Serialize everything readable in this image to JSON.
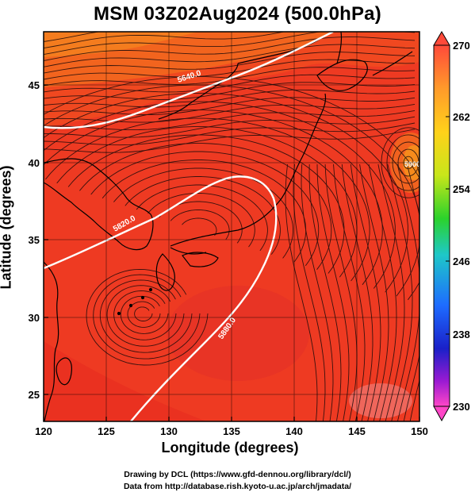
{
  "title": "MSM 03Z02Aug2024 (500.0hPa)",
  "map": {
    "xaxis": {
      "label": "Longitude (degrees)",
      "range": [
        120,
        150
      ],
      "ticks": [
        "120",
        "125",
        "130",
        "135",
        "140",
        "145",
        "150"
      ]
    },
    "yaxis": {
      "label": "Latitude  (degrees)",
      "range": [
        22.5,
        47.6
      ],
      "ticks": [
        "25",
        "30",
        "35",
        "40",
        "45"
      ]
    },
    "grid": true,
    "field_color": "#ee3a22",
    "contour_labels": [
      "5640.0",
      "5820.0",
      "5880.0",
      "5900.0"
    ]
  },
  "colorbar": {
    "ticks": [
      "270",
      "262",
      "254",
      "246",
      "238",
      "230"
    ],
    "colors": [
      "#ff4a3a",
      "#ff9a2a",
      "#ffd21a",
      "#c8e61a",
      "#2bd22b",
      "#1ec8c8",
      "#1e6cff",
      "#1a20c8",
      "#9a1ad2",
      "#ff46c8"
    ]
  },
  "footer": {
    "line1": "Drawing by DCL (https://www.gfd-dennou.org/library/dcl/)",
    "line2": "Data from http://database.rish.kyoto-u.ac.jp/arch/jmadata/"
  }
}
